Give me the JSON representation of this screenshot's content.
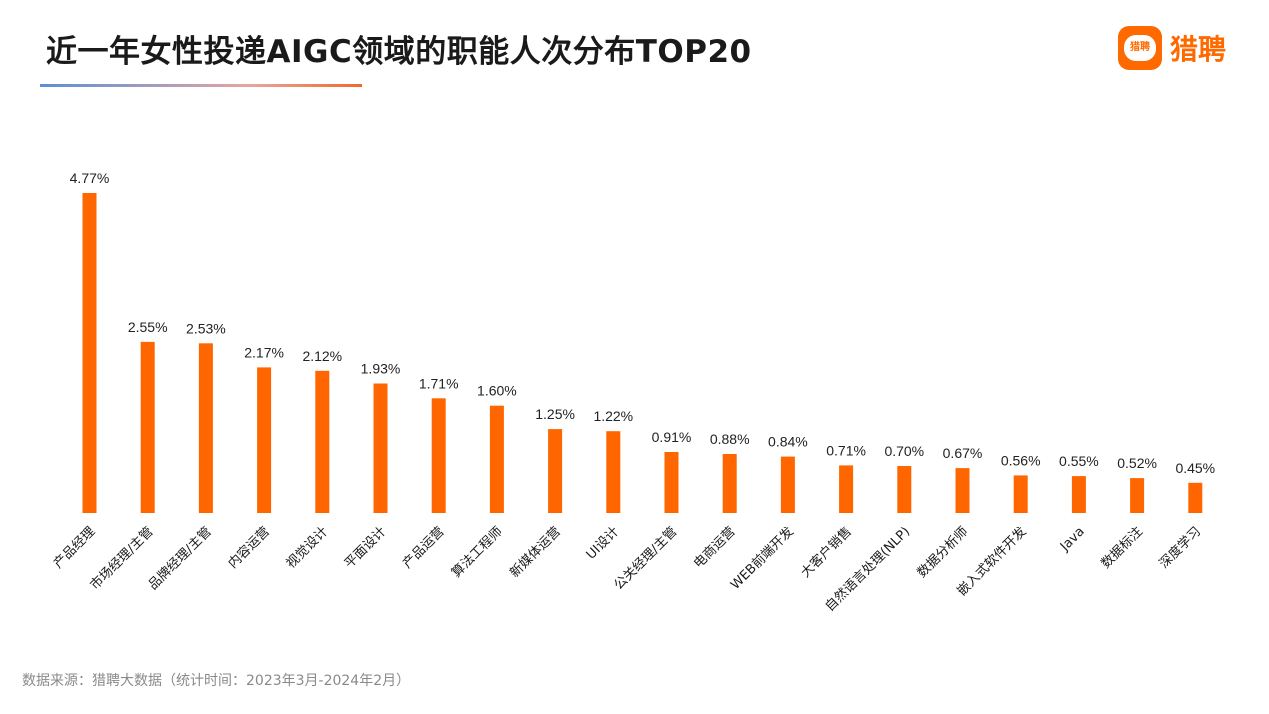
{
  "title": "近一年女性投递AIGC领域的职能人次分布TOP20",
  "logo": {
    "badge_text": "猎聘",
    "text": "猎聘"
  },
  "footer": "数据来源：猎聘大数据（统计时间：2023年3月-2024年2月）",
  "colors": {
    "bar": "#ff6600",
    "brand": "#ff6a00"
  },
  "chart_data": {
    "type": "bar",
    "title": "近一年女性投递AIGC领域的职能人次分布TOP20",
    "xlabel": "",
    "ylabel": "",
    "ylim": [
      0,
      5
    ],
    "grid": false,
    "categories": [
      "产品经理",
      "市场经理/主管",
      "品牌经理/主管",
      "内容运营",
      "视觉设计",
      "平面设计",
      "产品运营",
      "算法工程师",
      "新媒体运营",
      "UI设计",
      "公关经理/主管",
      "电商运营",
      "WEB前端开发",
      "大客户销售",
      "自然语言处理(NLP)",
      "数据分析师",
      "嵌入式软件开发",
      "Java",
      "数据标注",
      "深度学习"
    ],
    "values": [
      4.77,
      2.55,
      2.53,
      2.17,
      2.12,
      1.93,
      1.71,
      1.6,
      1.25,
      1.22,
      0.91,
      0.88,
      0.84,
      0.71,
      0.7,
      0.67,
      0.56,
      0.55,
      0.52,
      0.45
    ],
    "labels": [
      "4.77%",
      "2.55%",
      "2.53%",
      "2.17%",
      "2.12%",
      "1.93%",
      "1.71%",
      "1.60%",
      "1.25%",
      "1.22%",
      "0.91%",
      "0.88%",
      "0.84%",
      "0.71%",
      "0.70%",
      "0.67%",
      "0.56%",
      "0.55%",
      "0.52%",
      "0.45%"
    ]
  }
}
